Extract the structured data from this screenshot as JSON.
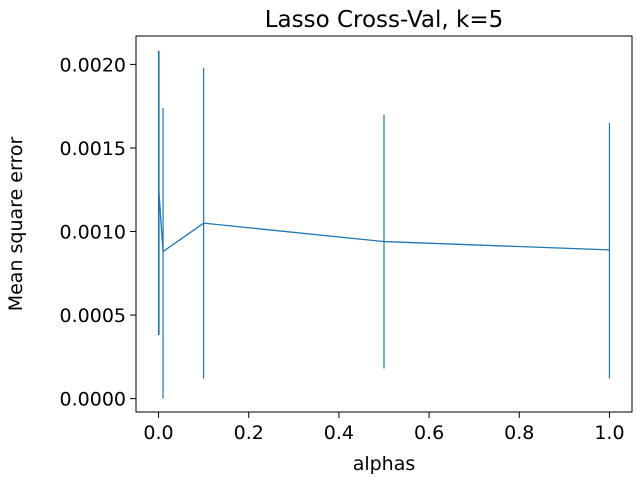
{
  "chart_data": {
    "type": "line",
    "title": "Lasso Cross-Val, k=5",
    "xlabel": "alphas",
    "ylabel": "Mean square error",
    "xlim": [
      -0.05,
      1.05
    ],
    "ylim": [
      -8e-05,
      0.00217
    ],
    "x_ticks": [
      0.0,
      0.2,
      0.4,
      0.6,
      0.8,
      1.0
    ],
    "x_tick_labels": [
      "0.0",
      "0.2",
      "0.4",
      "0.6",
      "0.8",
      "1.0"
    ],
    "y_ticks": [
      0.0,
      0.0005,
      0.001,
      0.0015,
      0.002
    ],
    "y_tick_labels": [
      "0.0000",
      "0.0005",
      "0.0010",
      "0.0015",
      "0.0020"
    ],
    "grid": false,
    "legend": "none",
    "series": [
      {
        "color": "#1f77b4",
        "x": [
          0.0,
          0.001,
          0.01,
          0.1,
          0.5,
          1.0
        ],
        "y": [
          0.00123,
          0.00123,
          0.00088,
          0.00105,
          0.00094,
          0.00089
        ],
        "err_low": [
          0.00038,
          0.00038,
          0.0,
          0.00012,
          0.00018,
          0.00012
        ],
        "err_high": [
          0.00208,
          0.00208,
          0.00174,
          0.00198,
          0.0017,
          0.00165
        ]
      }
    ]
  }
}
